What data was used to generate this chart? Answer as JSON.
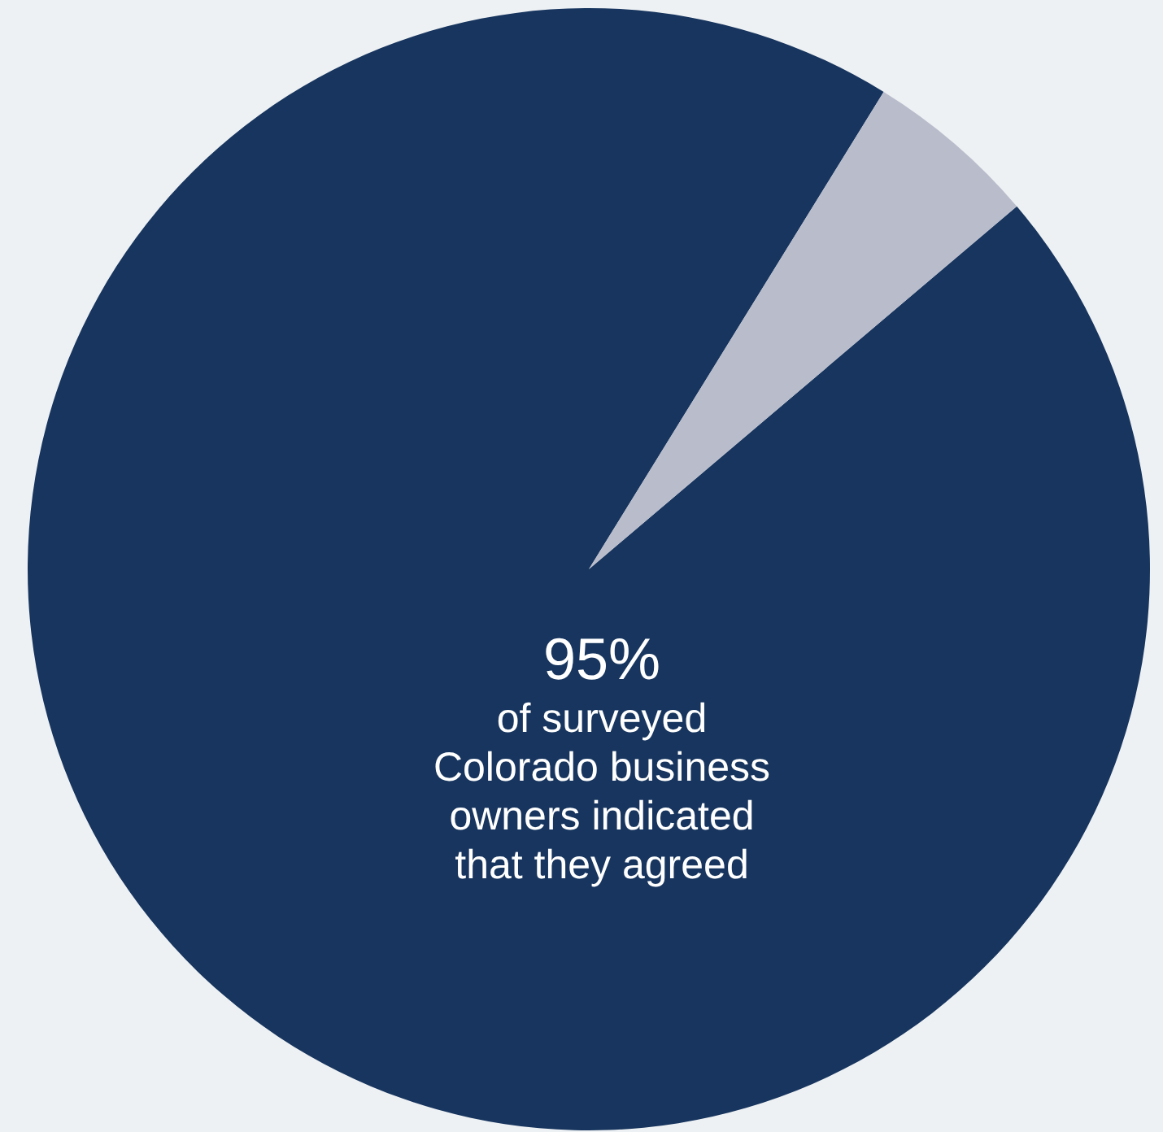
{
  "chart_data": {
    "type": "pie",
    "categories": [
      null,
      null
    ],
    "values": [
      95,
      5
    ],
    "colors": [
      "#17355e",
      "#b9bccb"
    ],
    "value_labels": [
      "95%",
      null
    ],
    "annotations": [
      "of surveyed\nColorado business\nowners indicated\nthat they agreed"
    ]
  }
}
